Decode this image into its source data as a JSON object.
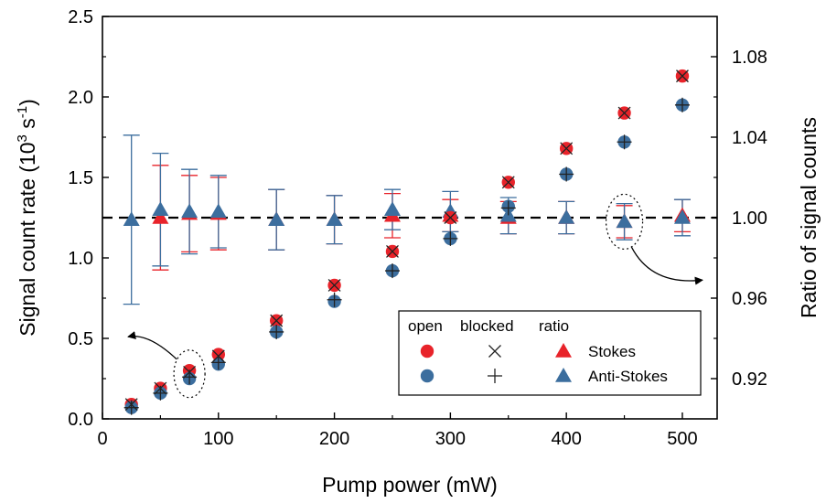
{
  "chart_data": {
    "type": "scatter",
    "x_axis": {
      "label": "Pump power (mW)",
      "range": [
        0,
        530
      ],
      "ticks": [
        0,
        100,
        200,
        300,
        400,
        500
      ]
    },
    "y_left": {
      "label_main": "Signal count rate (10",
      "label_sup1": "3",
      "label_mid": " s",
      "label_sup2": "-1",
      "label_end": ")",
      "range": [
        0,
        2.5
      ],
      "ticks": [
        "0.0",
        "0.5",
        "1.0",
        "1.5",
        "2.0",
        "2.5"
      ]
    },
    "y_right": {
      "label": "Ratio of signal counts",
      "range": [
        0.9,
        1.1
      ],
      "ticks": [
        "0.92",
        "0.96",
        "1.00",
        "1.04",
        "1.08"
      ]
    },
    "reference_line": 1.0,
    "legend": {
      "headers": [
        "open",
        "blocked",
        "ratio"
      ],
      "rows": [
        {
          "name": "Stokes",
          "color": "#e8232a"
        },
        {
          "name": "Anti-Stokes",
          "color": "#3c6e9e"
        }
      ],
      "placement": "bottom-right"
    },
    "series": [
      {
        "name": "Stokes",
        "mode": "open",
        "axis": "left",
        "color": "#e8232a",
        "x": [
          25,
          50,
          75,
          100,
          150,
          200,
          250,
          300,
          350,
          400,
          450,
          500
        ],
        "y": [
          0.09,
          0.19,
          0.3,
          0.4,
          0.61,
          0.83,
          1.04,
          1.25,
          1.47,
          1.68,
          1.9,
          2.13
        ]
      },
      {
        "name": "Stokes",
        "mode": "blocked",
        "axis": "left",
        "x": [
          25,
          50,
          75,
          100,
          150,
          200,
          250,
          300,
          350,
          400,
          450,
          500
        ],
        "y": [
          0.09,
          0.19,
          0.29,
          0.39,
          0.61,
          0.83,
          1.04,
          1.25,
          1.47,
          1.68,
          1.9,
          2.13
        ]
      },
      {
        "name": "Anti-Stokes",
        "mode": "open",
        "axis": "left",
        "color": "#3c6e9e",
        "x": [
          25,
          50,
          75,
          100,
          150,
          200,
          250,
          300,
          350,
          400,
          450,
          500
        ],
        "y": [
          0.07,
          0.16,
          0.25,
          0.34,
          0.54,
          0.73,
          0.92,
          1.12,
          1.32,
          1.52,
          1.72,
          1.95
        ]
      },
      {
        "name": "Anti-Stokes",
        "mode": "blocked",
        "axis": "left",
        "x": [
          25,
          50,
          75,
          100,
          150,
          200,
          250,
          300,
          350,
          400,
          450,
          500
        ],
        "y": [
          0.07,
          0.16,
          0.26,
          0.35,
          0.54,
          0.74,
          0.92,
          1.12,
          1.31,
          1.52,
          1.72,
          1.95
        ]
      },
      {
        "name": "Stokes",
        "mode": "ratio",
        "axis": "right",
        "color": "#e8232a",
        "x": [
          50,
          75,
          100,
          150,
          200,
          250,
          300,
          350,
          400,
          450,
          500
        ],
        "y": [
          1.0,
          1.002,
          1.002,
          0.999,
          0.999,
          1.001,
          1.001,
          1.0,
          1.0,
          0.998,
          1.001
        ],
        "err": [
          0.026,
          0.019,
          0.018,
          0.015,
          0.012,
          0.011,
          0.008,
          0.008,
          0.008,
          0.008,
          0.008
        ]
      },
      {
        "name": "Anti-Stokes",
        "mode": "ratio",
        "axis": "right",
        "color": "#3c6e9e",
        "x": [
          25,
          50,
          75,
          100,
          150,
          200,
          250,
          300,
          350,
          400,
          450,
          500
        ],
        "y": [
          0.999,
          1.004,
          1.003,
          1.003,
          0.999,
          0.999,
          1.004,
          1.003,
          1.001,
          1.0,
          0.998,
          1.0
        ],
        "err": [
          0.042,
          0.028,
          0.021,
          0.018,
          0.015,
          0.012,
          0.01,
          0.01,
          0.009,
          0.008,
          0.009,
          0.009
        ]
      }
    ],
    "annotations": [
      {
        "type": "ellipse",
        "x": 75,
        "y": 0.28,
        "axis": "left",
        "arrow_to": "left-axis"
      },
      {
        "type": "ellipse",
        "x": 450,
        "y": 0.998,
        "axis": "right",
        "arrow_to": "right-axis"
      }
    ]
  }
}
